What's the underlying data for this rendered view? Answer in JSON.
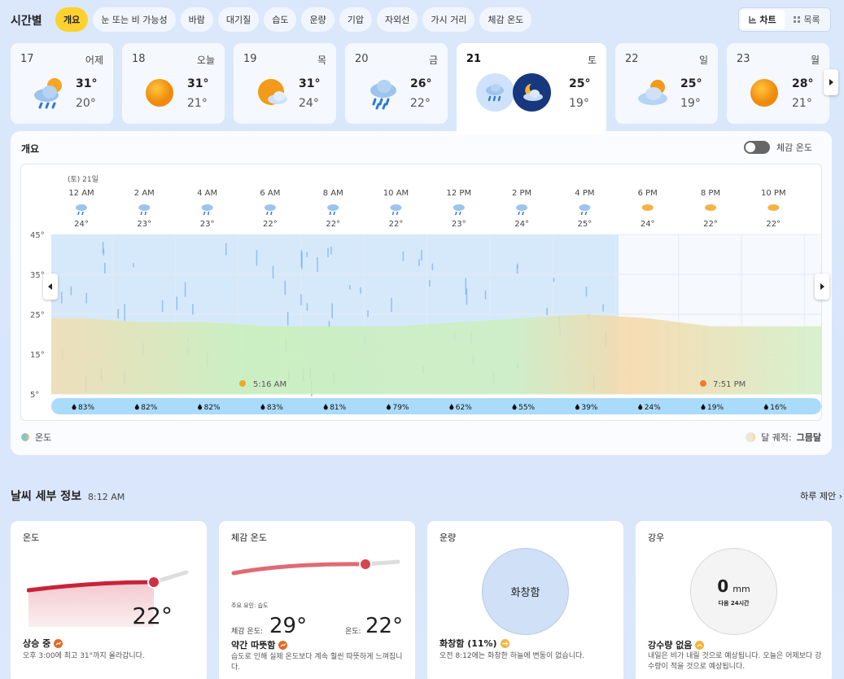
{
  "header": {
    "title": "시간별",
    "tabs": [
      "개요",
      "눈 또는 비 가능성",
      "바람",
      "대기질",
      "습도",
      "운량",
      "기압",
      "자외선",
      "가시 거리",
      "체감 온도"
    ],
    "view_chart": "차트",
    "view_list": "목록"
  },
  "days": [
    {
      "num": "17",
      "name": "어제",
      "hi": "31°",
      "lo": "20°",
      "icon": "rain-sun-icon"
    },
    {
      "num": "18",
      "name": "오늘",
      "hi": "31°",
      "lo": "21°",
      "icon": "sun-icon"
    },
    {
      "num": "19",
      "name": "목",
      "hi": "31°",
      "lo": "24°",
      "icon": "partly-cloudy-icon"
    },
    {
      "num": "20",
      "name": "금",
      "hi": "26°",
      "lo": "22°",
      "icon": "heavy-rain-icon"
    },
    {
      "num": "21",
      "name": "토",
      "hi": "25°",
      "lo": "19°",
      "icon": "rain-icon"
    },
    {
      "num": "22",
      "name": "일",
      "hi": "25°",
      "lo": "19°",
      "icon": "partly-cloudy-icon"
    },
    {
      "num": "23",
      "name": "월",
      "hi": "28°",
      "lo": "21°",
      "icon": "sun-icon"
    }
  ],
  "overview": {
    "title": "개요",
    "feels_toggle": "체감 온도",
    "date_label": "(토) 21일",
    "times": [
      "12 AM",
      "2 AM",
      "4 AM",
      "6 AM",
      "8 AM",
      "10 AM",
      "12 PM",
      "2 PM",
      "4 PM",
      "6 PM",
      "8 PM",
      "10 PM"
    ],
    "temps": [
      "24°",
      "23°",
      "23°",
      "22°",
      "22°",
      "22°",
      "23°",
      "24°",
      "25°",
      "24°",
      "22°",
      "22°"
    ],
    "y_ticks": [
      "45°",
      "35°",
      "25°",
      "15°",
      "5°"
    ],
    "sunrise": "5:16 AM",
    "sunset": "7:51 PM",
    "precip": [
      "83%",
      "82%",
      "82%",
      "83%",
      "81%",
      "79%",
      "62%",
      "55%",
      "39%",
      "24%",
      "19%",
      "16%"
    ],
    "legend_temp": "온도",
    "moon_label": "달 궤적:",
    "moon_phase": "그믐달"
  },
  "chart_data": {
    "type": "area",
    "x": [
      "12 AM",
      "2 AM",
      "4 AM",
      "6 AM",
      "8 AM",
      "10 AM",
      "12 PM",
      "2 PM",
      "4 PM",
      "6 PM",
      "8 PM",
      "10 PM"
    ],
    "series": [
      {
        "values": [
          24,
          23,
          23,
          22,
          22,
          22,
          23,
          24,
          25,
          24,
          22,
          22
        ]
      }
    ],
    "precip": [
      83,
      82,
      82,
      83,
      81,
      79,
      62,
      55,
      39,
      24,
      19,
      16
    ],
    "ylim": [
      5,
      45
    ]
  },
  "details": {
    "title": "날씨 세부 정보",
    "time": "8:12 AM",
    "link": "하루 제안",
    "temp": {
      "title": "온도",
      "value": "22°",
      "status": "상승 중",
      "desc": "오후 3:00에 최고 31°까지 올라갑니다."
    },
    "feels": {
      "title": "체감 온도",
      "factor": "주요 요인: 습도",
      "feels_label": "체감 온도:",
      "feels_value": "29°",
      "temp_label": "온도:",
      "temp_value": "22°",
      "status": "약간 따뜻함",
      "desc": "습도로 인해 실제 온도보다 계속 훨씬 따뜻하게 느껴집니다."
    },
    "cloud": {
      "title": "운량",
      "circle": "화창함",
      "status": "화창함 (11%)",
      "desc": "오전 8:12에는 화창한 하늘에 변동이 없습니다."
    },
    "rain": {
      "title": "강우",
      "amount": "0",
      "unit": "mm",
      "sub": "다음 24시간",
      "status": "강수량 없음",
      "desc": "내일은 비가 내릴 것으로 예상됩니다. 오늘은 어제보다 강수량이 적을 것으로 예상됩니다."
    }
  }
}
